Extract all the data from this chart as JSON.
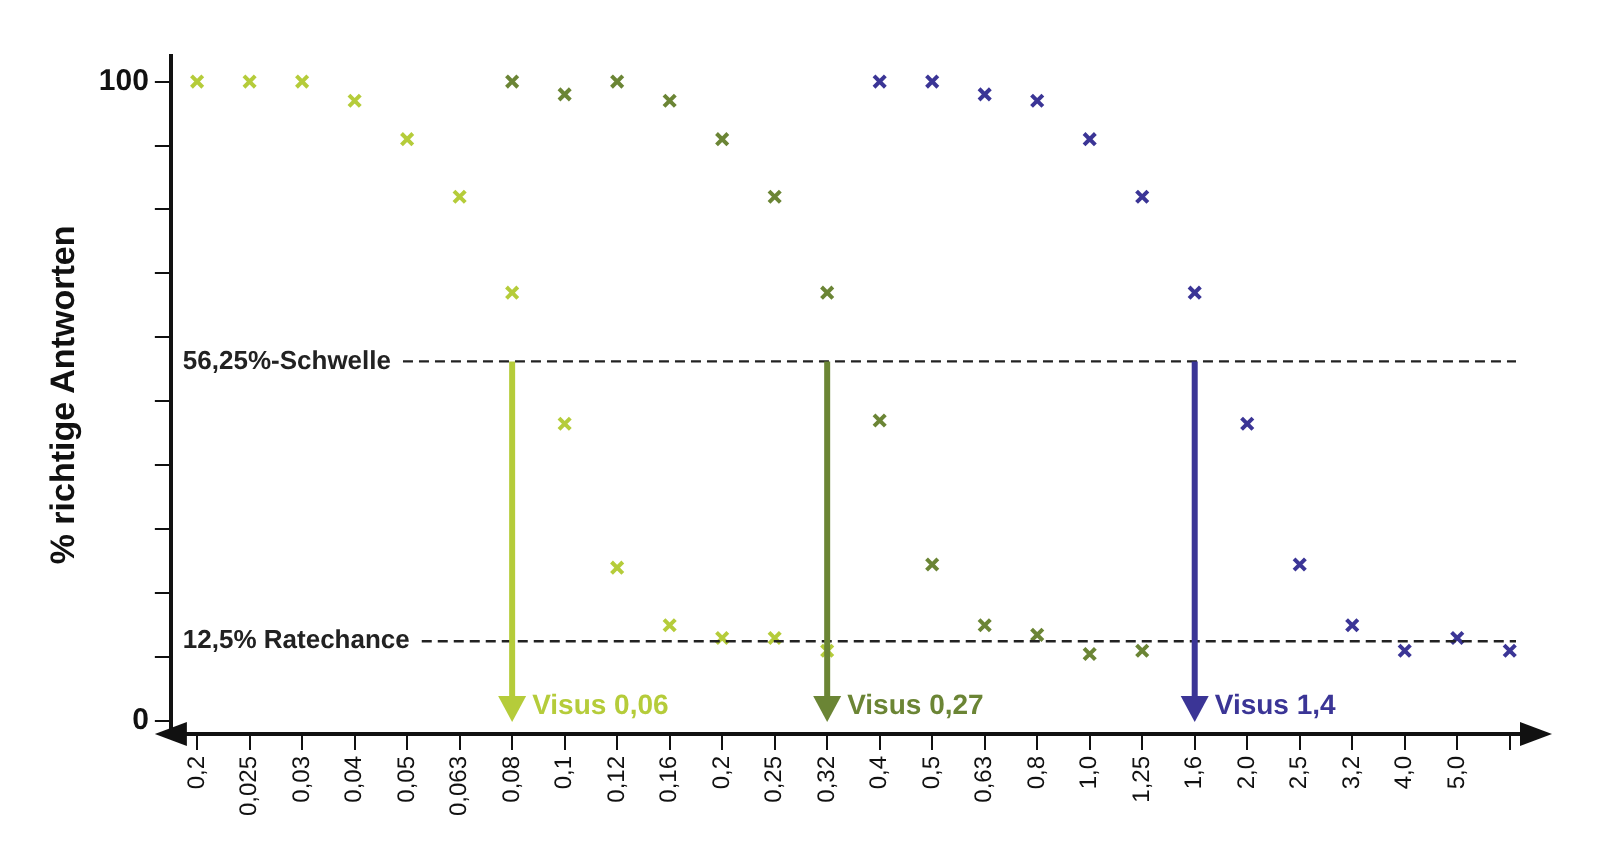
{
  "chart_data": {
    "type": "scatter",
    "ylabel": "% richtige Antworten",
    "categories": [
      "0,2",
      "0,025",
      "0,03",
      "0,04",
      "0,05",
      "0,063",
      "0,08",
      "0,1",
      "0,12",
      "0,16",
      "0,2",
      "0,25",
      "0,32",
      "0,4",
      "0,5",
      "0,63",
      "0,8",
      "1,0",
      "1,25",
      "1,6",
      "2,0",
      "2,5",
      "3,2",
      "4,0",
      "5,0",
      null
    ],
    "series": [
      {
        "color": "#b5cc3a",
        "values": [
          100,
          100,
          100,
          97,
          91,
          82,
          67,
          46.5,
          24,
          15,
          13,
          13,
          11,
          null,
          null,
          null,
          null,
          null,
          null,
          null,
          null,
          null,
          null,
          null,
          null,
          null
        ]
      },
      {
        "color": "#6b8535",
        "values": [
          null,
          null,
          null,
          null,
          null,
          null,
          100,
          98,
          100,
          97,
          91,
          82,
          67,
          47,
          24.5,
          15,
          13.5,
          10.5,
          11,
          null,
          null,
          null,
          null,
          null,
          null,
          null
        ]
      },
      {
        "color": "#3b3596",
        "values": [
          null,
          null,
          null,
          null,
          null,
          null,
          null,
          null,
          null,
          null,
          null,
          null,
          null,
          100,
          100,
          98,
          97,
          91,
          82,
          67,
          46.5,
          24.5,
          15,
          11,
          13,
          11
        ]
      }
    ],
    "ylim": [
      -2,
      104
    ],
    "yticks": [
      0,
      {
        "value": 10,
        "label": null
      },
      {
        "value": 20,
        "label": null
      },
      {
        "value": 30,
        "label": null
      },
      {
        "value": 40,
        "label": null
      },
      {
        "value": 50,
        "label": null
      },
      {
        "value": 60,
        "label": null
      },
      {
        "value": 70,
        "label": null
      },
      {
        "value": 80,
        "label": null
      },
      {
        "value": 90,
        "label": null
      },
      100
    ],
    "ref_lines": [
      {
        "axis": "y",
        "value": 56.25,
        "label": "56,25%-Schwelle",
        "line_style": "dashed",
        "color": "#222222"
      },
      {
        "axis": "y",
        "value": 12.5,
        "label": "12,5% Ratechance",
        "line_style": "dashed",
        "color": "#222222"
      }
    ],
    "annotations": [
      {
        "text": "Visus 0,06",
        "x": "0,08",
        "y": 56.25
      },
      {
        "text": "Visus 0,27",
        "x": "0,32",
        "y": 56.25
      },
      {
        "text": "Visus 1,4",
        "x": "1,6",
        "y": 56.25
      }
    ],
    "marker": "cross",
    "grid": false,
    "legend": false
  }
}
